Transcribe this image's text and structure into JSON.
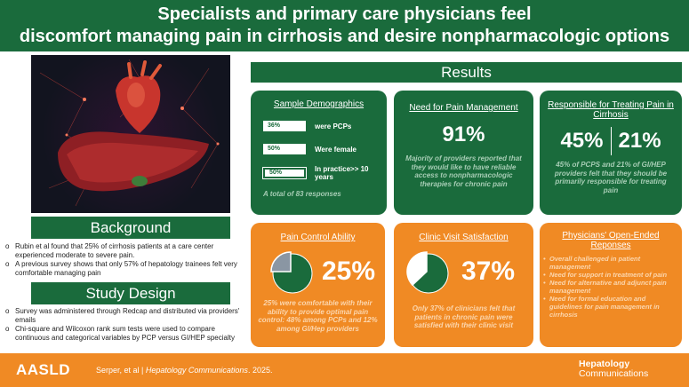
{
  "header": {
    "title_line1": "Specialists and primary care physicians feel",
    "title_line2": "discomfort managing pain in cirrhosis and desire nonpharmacologic options"
  },
  "background": {
    "title": "Background",
    "bullets": [
      "Rubin et al found that 25% of cirrhosis patients at a care center experienced moderate to severe pain.",
      "A previous survey shows that only 57% of hepatology trainees felt very comfortable managing pain"
    ]
  },
  "study_design": {
    "title": "Study Design",
    "bullets": [
      "Survey was administered through Redcap and distributed via providers' emails",
      "Chi-square and Wilcoxon rank sum tests were used to compare continuous and categorical variables by PCP versus GI/HEP specialty"
    ]
  },
  "results": {
    "title": "Results",
    "sample": {
      "title": "Sample Demographics",
      "rows": [
        {
          "value": "36%",
          "label": "were PCPs"
        },
        {
          "value": "50%",
          "label": "Were female"
        },
        {
          "value": "50%",
          "label": "In practice>> 10 years"
        }
      ],
      "note": "A total of  83 responses"
    },
    "need": {
      "title": "Need for Pain Management",
      "value": "91%",
      "note": "Majority of providers reported that they would like to have reliable access to nonpharmacologic therapies for chronic pain"
    },
    "responsible": {
      "title": "Responsible for Treating Pain in Cirrhosis",
      "value1": "45%",
      "value2": "21%",
      "note": "45% of PCPS and 21% of GI/HEP providers felt that they should be primarily responsible for treating pain"
    },
    "pain_control": {
      "title": "Pain Control Ability",
      "value": "25%",
      "fraction": 0.25,
      "note": "25% were comfortable with their ability to provide optimal pain control: 48% among PCPs and 12% among GI/Hep providers"
    },
    "clinic": {
      "title": "Clinic Visit Satisfaction",
      "value": "37%",
      "fraction": 0.37,
      "note": "Only 37% of clinicians felt that patients in chronic pain were satisfied with their clinic visit"
    },
    "open_ended": {
      "title": "Physicians' Open-Ended Reponses",
      "items": [
        "Overall challenged in patient management",
        "Need for support in treatment of pain",
        "Need for alternative and adjunct pain management",
        "Need for formal education and guidelines for pain management in cirrhosis"
      ]
    }
  },
  "footer": {
    "brand": "AASLD",
    "citation_authors": "Serper, et al  |  ",
    "citation_journal": "Hepatology Communications",
    "citation_year": ". 2025.",
    "journal_line1": "Hepatology",
    "journal_line2": "Communications"
  },
  "colors": {
    "green": "#1a6b3c",
    "orange": "#f08a24",
    "pie_light_green": "#a7cdb5",
    "pie_gray": "#8a96a3"
  }
}
